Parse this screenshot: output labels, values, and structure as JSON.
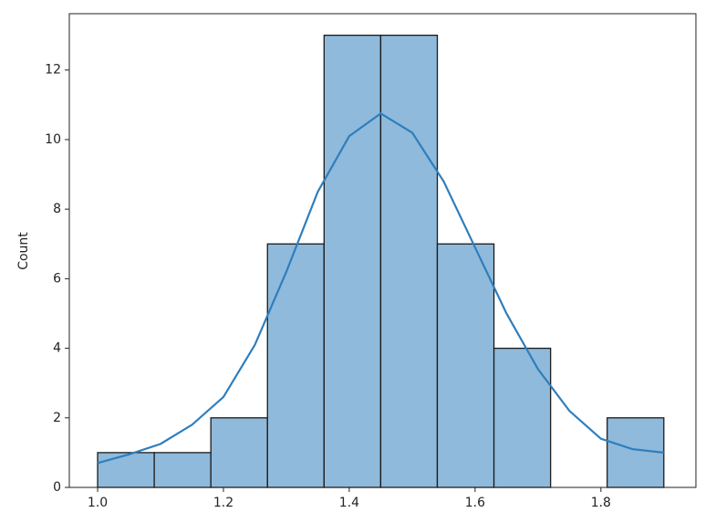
{
  "chart_data": {
    "type": "histogram",
    "ylabel": "Count",
    "bins": [
      1.0,
      1.09,
      1.18,
      1.27,
      1.36,
      1.45,
      1.54,
      1.63,
      1.72,
      1.81,
      1.9
    ],
    "counts": [
      1,
      1,
      2,
      7,
      13,
      13,
      7,
      4,
      0,
      2
    ],
    "color": "#8fbadb",
    "edgecolor": "#1a1a1a",
    "kde": {
      "color": "#2f7ebc",
      "x": [
        1.0,
        1.05,
        1.1,
        1.15,
        1.2,
        1.25,
        1.3,
        1.35,
        1.4,
        1.45,
        1.5,
        1.55,
        1.6,
        1.65,
        1.7,
        1.75,
        1.8,
        1.85,
        1.9
      ],
      "y": [
        0.7,
        0.95,
        1.25,
        1.8,
        2.6,
        4.1,
        6.2,
        8.5,
        10.1,
        10.75,
        10.2,
        8.8,
        6.9,
        5.0,
        3.4,
        2.2,
        1.4,
        1.1,
        1.0
      ]
    },
    "xlim": [
      0.955,
      1.951
    ],
    "ylim": [
      0,
      13.62
    ],
    "xticks": [
      {
        "value": 1.0,
        "label": "1.0"
      },
      {
        "value": 1.2,
        "label": "1.2"
      },
      {
        "value": 1.4,
        "label": "1.4"
      },
      {
        "value": 1.6,
        "label": "1.6"
      },
      {
        "value": 1.8,
        "label": "1.8"
      }
    ],
    "yticks": [
      0,
      2,
      4,
      6,
      8,
      10,
      12
    ]
  }
}
